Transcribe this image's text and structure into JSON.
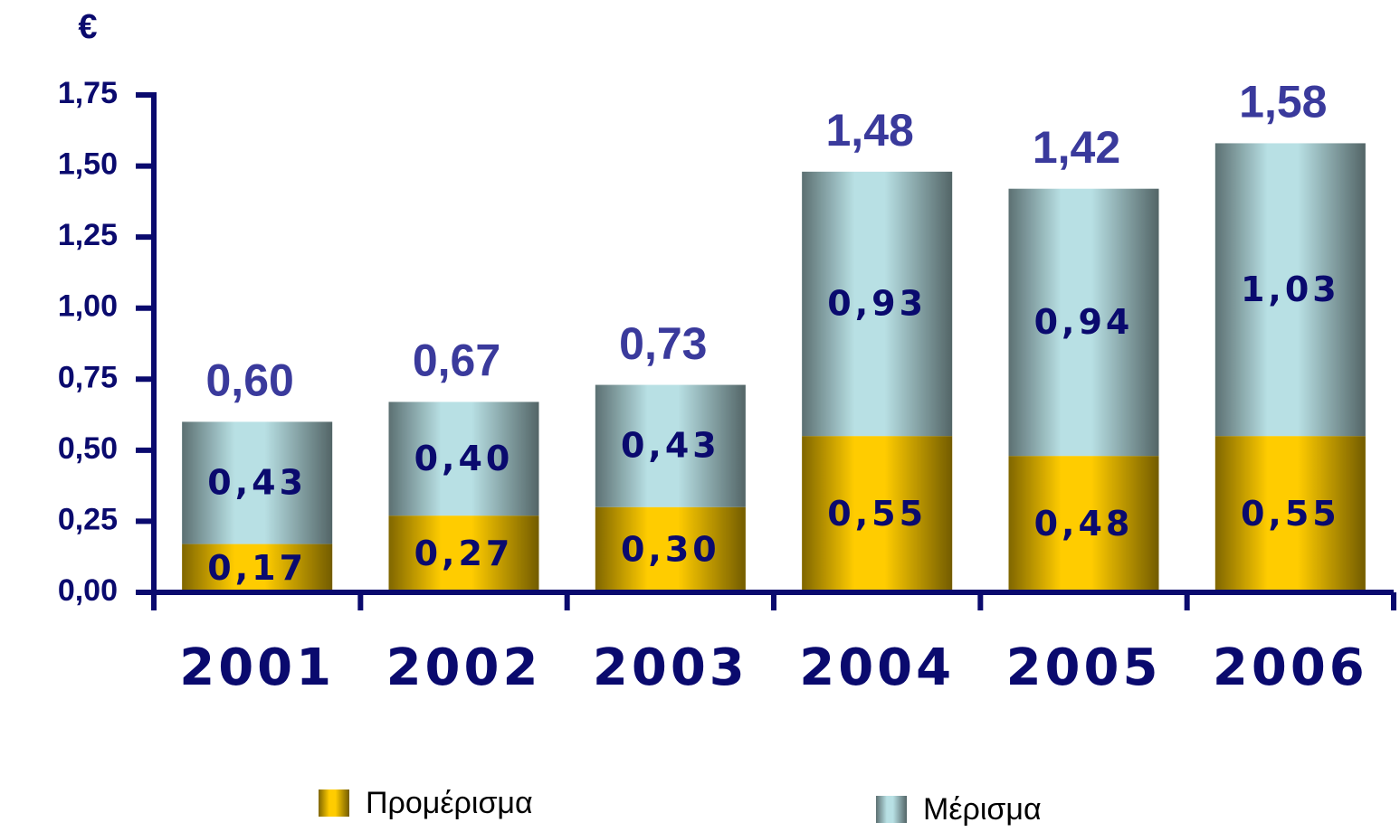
{
  "chart_data": {
    "type": "stacked_bar",
    "y_axis_label": "€",
    "categories": [
      "2001",
      "2002",
      "2003",
      "2004",
      "2005",
      "2006"
    ],
    "series": [
      {
        "name": "Προμέρισμα",
        "color": "#ffcc00",
        "values": [
          0.17,
          0.27,
          0.3,
          0.55,
          0.48,
          0.55
        ],
        "value_labels": [
          "0,17",
          "0,27",
          "0,30",
          "0,55",
          "0,48",
          "0,55"
        ]
      },
      {
        "name": "Μέρισμα",
        "color": "#b8e0e4",
        "values": [
          0.43,
          0.4,
          0.43,
          0.93,
          0.94,
          1.03
        ],
        "value_labels": [
          "0,43",
          "0,40",
          "0,43",
          "0,93",
          "0,94",
          "1,03"
        ]
      }
    ],
    "totals": [
      0.6,
      0.67,
      0.73,
      1.48,
      1.42,
      1.58
    ],
    "total_labels": [
      "0,60",
      "0,67",
      "0,73",
      "1,48",
      "1,42",
      "1,58"
    ],
    "ylim": [
      0,
      1.75
    ],
    "yticks": [
      {
        "value": 0,
        "label": "0,00"
      },
      {
        "value": 0.25,
        "label": "0,25"
      },
      {
        "value": 0.5,
        "label": "0,50"
      },
      {
        "value": 0.75,
        "label": "0,75"
      },
      {
        "value": 1,
        "label": "1,00"
      },
      {
        "value": 1.25,
        "label": "1,25"
      },
      {
        "value": 1.5,
        "label": "1,50"
      },
      {
        "value": 1.75,
        "label": "1,75"
      }
    ]
  }
}
